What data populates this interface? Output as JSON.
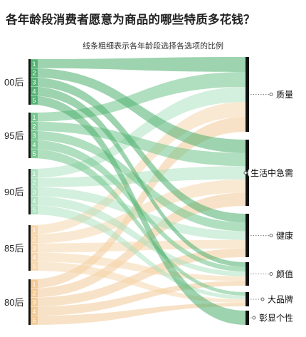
{
  "title": "各年龄段消费者愿意为商品的哪些特质多花钱？",
  "subtitle": "线条粗细表示各年龄段选择各选项的比例",
  "chart_data": {
    "type": "sankey",
    "age_groups": [
      "00后",
      "95后",
      "90后",
      "85后",
      "80后"
    ],
    "rank_labels": [
      "1",
      "2",
      "3",
      "4",
      "5"
    ],
    "attributes": [
      "质量",
      "生活中急需",
      "健康",
      "颜值",
      "大品牌",
      "彰显个性"
    ],
    "colors": {
      "00后": "#4caf6e",
      "95后": "#6fc48a",
      "90后": "#a8e0bc",
      "85后": "#f5d3a5",
      "80后": "#f2c68f"
    },
    "flows": [
      {
        "age": "00后",
        "rank": 1,
        "attr": "质量"
      },
      {
        "age": "00后",
        "rank": 2,
        "attr": "生活中急需"
      },
      {
        "age": "00后",
        "rank": 3,
        "attr": "健康"
      },
      {
        "age": "00后",
        "rank": 4,
        "attr": "颜值"
      },
      {
        "age": "00后",
        "rank": 5,
        "attr": "彰显个性"
      },
      {
        "age": "95后",
        "rank": 1,
        "attr": "质量"
      },
      {
        "age": "95后",
        "rank": 2,
        "attr": "生活中急需"
      },
      {
        "age": "95后",
        "rank": 3,
        "attr": "健康"
      },
      {
        "age": "95后",
        "rank": 4,
        "attr": "颜值"
      },
      {
        "age": "95后",
        "rank": 5,
        "attr": "大品牌"
      },
      {
        "age": "90后",
        "rank": 1,
        "attr": "质量"
      },
      {
        "age": "90后",
        "rank": 2,
        "attr": "生活中急需"
      },
      {
        "age": "90后",
        "rank": 3,
        "attr": "健康"
      },
      {
        "age": "90后",
        "rank": 4,
        "attr": "颜值"
      },
      {
        "age": "90后",
        "rank": 5,
        "attr": "大品牌"
      },
      {
        "age": "85后",
        "rank": 1,
        "attr": "质量"
      },
      {
        "age": "85后",
        "rank": 2,
        "attr": "生活中急需"
      },
      {
        "age": "85后",
        "rank": 3,
        "attr": "健康"
      },
      {
        "age": "85后",
        "rank": 4,
        "attr": "颜值"
      },
      {
        "age": "85后",
        "rank": 5,
        "attr": "大品牌"
      },
      {
        "age": "80后",
        "rank": 1,
        "attr": "质量"
      },
      {
        "age": "80后",
        "rank": 2,
        "attr": "生活中急需"
      },
      {
        "age": "80后",
        "rank": 3,
        "attr": "健康"
      },
      {
        "age": "80后",
        "rank": 4,
        "attr": "颜值"
      },
      {
        "age": "80后",
        "rank": 5,
        "attr": "大品牌"
      }
    ]
  }
}
